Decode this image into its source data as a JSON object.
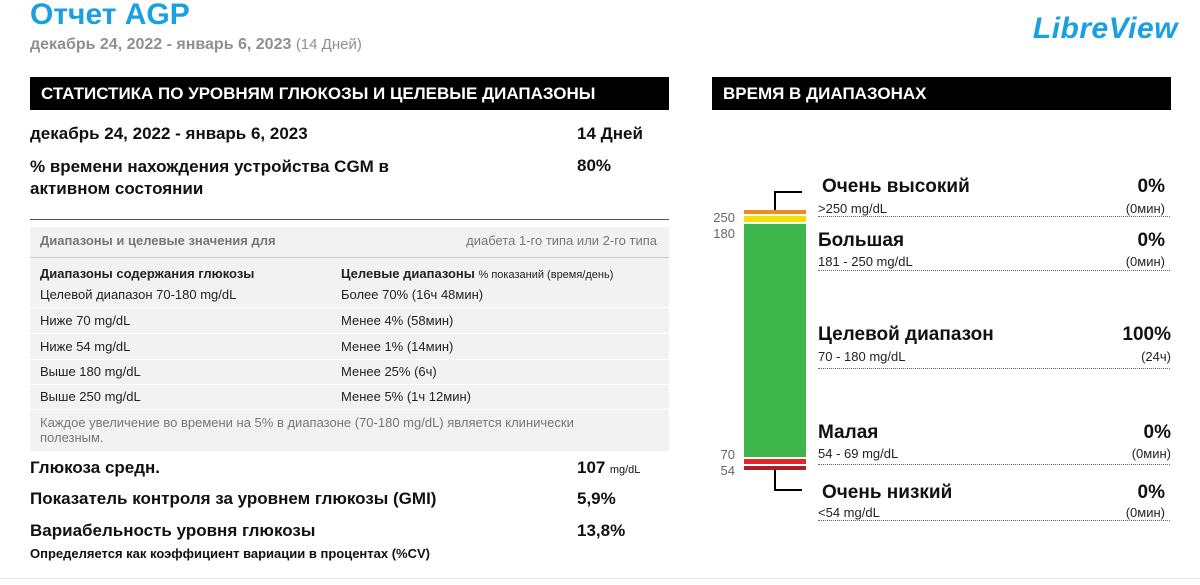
{
  "header": {
    "title": "Отчет AGP",
    "date_range": "декабрь 24, 2022 - январь 6, 2023",
    "days": "(14 Дней)",
    "logo": "LibreView"
  },
  "stats": {
    "section_title": "СТАТИСТИКА ПО УРОВНЯМ ГЛЮКОЗЫ И ЦЕЛЕВЫЕ ДИАПАЗОНЫ",
    "period_label": "декабрь 24, 2022 - январь 6, 2023",
    "period_value": "14 Дней",
    "cgm_label": "% времени нахождения устройства CGM в активном состоянии",
    "cgm_value": "80%",
    "targets": {
      "header_left": "Диапазоны и целевые значения для",
      "header_right": "диабета 1-го типа или 2-го типа",
      "col1": "Диапазоны содержания глюкозы",
      "col2": "Целевые диапазоны",
      "col2_sub": "% показаний (время/день)",
      "rows": [
        {
          "range": "Целевой диапазон 70-180 mg/dL",
          "target": "Более 70% (16ч 48мин)"
        },
        {
          "range": "Ниже 70 mg/dL",
          "target": "Менее 4% (58мин)"
        },
        {
          "range": "Ниже 54 mg/dL",
          "target": "Менее 1% (14мин)"
        },
        {
          "range": "Выше 180 mg/dL",
          "target": "Менее 25% (6ч)"
        },
        {
          "range": "Выше 250 mg/dL",
          "target": "Менее 5% (1ч 12мин)"
        }
      ],
      "note": "Каждое увеличение во времени на 5% в диапазоне (70-180 mg/dL) является клинически полезным."
    },
    "avg_label": "Глюкоза средн.",
    "avg_value": "107",
    "avg_unit": "mg/dL",
    "gmi_label": "Показатель контроля за уровнем глюкозы (GMI)",
    "gmi_value": "5,9%",
    "cv_label": "Вариабельность уровня глюкозы",
    "cv_value": "13,8%",
    "cv_note": "Определяется как коэффициент вариации в процентах (%CV)"
  },
  "time_in_range": {
    "section_title": "ВРЕМЯ В ДИАПАЗОНАХ",
    "ticks": [
      "250",
      "180",
      "70",
      "54"
    ],
    "colors": {
      "very_high": "#f08a1c",
      "high": "#f5e000",
      "target": "#3db54a",
      "low": "#e5242b",
      "very_low": "#b01e23"
    },
    "ranges": [
      {
        "label": "Очень высокий",
        "sub": ">250 mg/dL",
        "pct": "0%",
        "time": "(0мин)"
      },
      {
        "label": "Большая",
        "sub": "181 - 250 mg/dL",
        "pct": "0%",
        "time": "(0мин)"
      },
      {
        "label": "Целевой диапазон",
        "sub": "70 - 180 mg/dL",
        "pct": "100%",
        "time": "(24ч)"
      },
      {
        "label": "Малая",
        "sub": "54 - 69 mg/dL",
        "pct": "0%",
        "time": "(0мин)"
      },
      {
        "label": "Очень низкий",
        "sub": "<54 mg/dL",
        "pct": "0%",
        "time": "(0мин)"
      }
    ]
  }
}
